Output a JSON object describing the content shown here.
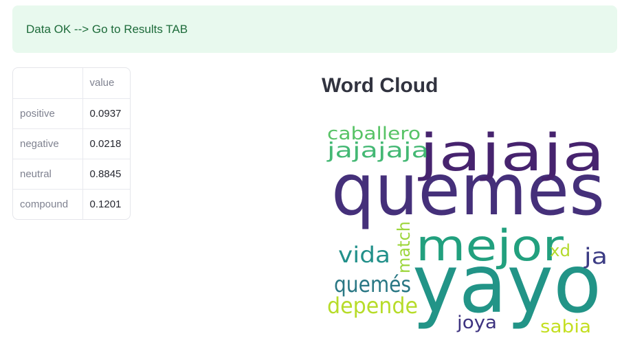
{
  "alert": {
    "message": "Data OK --> Go to Results TAB"
  },
  "sentiment_table": {
    "index_header": "",
    "column_header": "value",
    "rows": [
      {
        "label": "positive",
        "value": "0.0937"
      },
      {
        "label": "negative",
        "value": "0.0218"
      },
      {
        "label": "neutral",
        "value": "0.8845"
      },
      {
        "label": "compound",
        "value": "0.1201"
      }
    ]
  },
  "word_cloud": {
    "title": "Word Cloud",
    "words": [
      {
        "text": "quemes",
        "color": "#45307a"
      },
      {
        "text": "jajaja",
        "color": "#46236e"
      },
      {
        "text": "yayo",
        "color": "#229487"
      },
      {
        "text": "mejor",
        "color": "#22a07e"
      },
      {
        "text": "caballero",
        "color": "#58c366"
      },
      {
        "text": "jajajaja",
        "color": "#44b874"
      },
      {
        "text": "vida",
        "color": "#22908a"
      },
      {
        "text": "match",
        "color": "#9dd63d"
      },
      {
        "text": "xd",
        "color": "#b4da2c"
      },
      {
        "text": "ja",
        "color": "#3c3c84"
      },
      {
        "text": "quemés",
        "color": "#297784"
      },
      {
        "text": "depende",
        "color": "#b7dc2a"
      },
      {
        "text": "joya",
        "color": "#3e3380"
      },
      {
        "text": "sabia",
        "color": "#c4df22"
      }
    ]
  }
}
